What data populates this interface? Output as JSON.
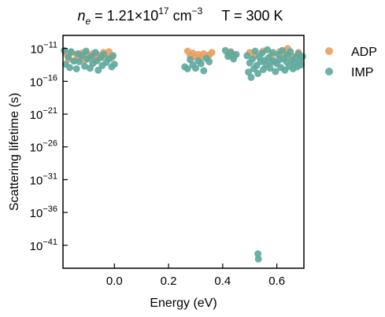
{
  "chart_data": {
    "type": "scatter",
    "title": {
      "density_symbol": "n",
      "density_subscript": "e",
      "density_value": "1.21×10",
      "density_exponent": "17",
      "density_unit": "cm",
      "density_unit_exponent": "−3",
      "temperature": "T = 300 K"
    },
    "xlabel": "Energy (eV)",
    "ylabel": "Scattering lifetime (s)",
    "xlim": [
      -0.19,
      0.7
    ],
    "ylim_log10": [
      -44.5,
      -9
    ],
    "y_scale": "log",
    "x_ticks": [
      {
        "value": 0.0,
        "label": "0.0"
      },
      {
        "value": 0.2,
        "label": "0.2"
      },
      {
        "value": 0.4,
        "label": "0.4"
      },
      {
        "value": 0.6,
        "label": "0.6"
      }
    ],
    "y_ticks": [
      {
        "value": -11,
        "base": "10",
        "exp": "−11"
      },
      {
        "value": -16,
        "base": "10",
        "exp": "−16"
      },
      {
        "value": -21,
        "base": "10",
        "exp": "−21"
      },
      {
        "value": -26,
        "base": "10",
        "exp": "−26"
      },
      {
        "value": -31,
        "base": "10",
        "exp": "−31"
      },
      {
        "value": -36,
        "base": "10",
        "exp": "−36"
      },
      {
        "value": -41,
        "base": "10",
        "exp": "−41"
      }
    ],
    "legend_position": "outside-right",
    "series": [
      {
        "name": "ADP",
        "color": "#e8a15f",
        "points": [
          [
            -0.18,
            -11.8
          ],
          [
            -0.17,
            -12.6
          ],
          [
            -0.16,
            -11.6
          ],
          [
            -0.15,
            -12.9
          ],
          [
            -0.14,
            -11.9
          ],
          [
            -0.13,
            -12.4
          ],
          [
            -0.12,
            -11.7
          ],
          [
            -0.11,
            -12.8
          ],
          [
            -0.1,
            -11.9
          ],
          [
            -0.09,
            -12.5
          ],
          [
            -0.08,
            -11.8
          ],
          [
            -0.07,
            -12.7
          ],
          [
            -0.06,
            -12.0
          ],
          [
            -0.05,
            -12.3
          ],
          [
            -0.04,
            -11.6
          ],
          [
            -0.03,
            -12.2
          ],
          [
            -0.02,
            -11.5
          ],
          [
            -0.01,
            -12.4
          ],
          [
            0.27,
            -11.4
          ],
          [
            0.28,
            -12.1
          ],
          [
            0.29,
            -11.7
          ],
          [
            0.3,
            -12.3
          ],
          [
            0.31,
            -11.9
          ],
          [
            0.32,
            -12.4
          ],
          [
            0.33,
            -11.8
          ],
          [
            0.35,
            -12.0
          ],
          [
            0.36,
            -11.6
          ],
          [
            0.42,
            -11.9
          ],
          [
            0.43,
            -11.5
          ],
          [
            0.44,
            -12.2
          ],
          [
            0.5,
            -11.6
          ],
          [
            0.52,
            -12.0
          ],
          [
            0.55,
            -11.4
          ],
          [
            0.58,
            -12.1
          ],
          [
            0.61,
            -11.5
          ],
          [
            0.63,
            -11.8
          ],
          [
            0.64,
            -11.0
          ],
          [
            0.66,
            -12.2
          ],
          [
            0.68,
            -11.6
          ],
          [
            0.69,
            -12.4
          ]
        ]
      },
      {
        "name": "IMP",
        "color": "#5fa99e",
        "points": [
          [
            -0.185,
            -11.3
          ],
          [
            -0.18,
            -13.4
          ],
          [
            -0.17,
            -12.3
          ],
          [
            -0.165,
            -13.9
          ],
          [
            -0.16,
            -11.5
          ],
          [
            -0.15,
            -12.9
          ],
          [
            -0.14,
            -14.1
          ],
          [
            -0.135,
            -11.8
          ],
          [
            -0.13,
            -13.0
          ],
          [
            -0.12,
            -12.1
          ],
          [
            -0.11,
            -13.7
          ],
          [
            -0.105,
            -11.4
          ],
          [
            -0.1,
            -12.6
          ],
          [
            -0.09,
            -14.0
          ],
          [
            -0.085,
            -12.2
          ],
          [
            -0.08,
            -13.3
          ],
          [
            -0.07,
            -11.6
          ],
          [
            -0.065,
            -12.9
          ],
          [
            -0.06,
            -14.3
          ],
          [
            -0.05,
            -12.4
          ],
          [
            -0.045,
            -13.6
          ],
          [
            -0.04,
            -11.9
          ],
          [
            -0.03,
            -13.1
          ],
          [
            -0.02,
            -12.6
          ],
          [
            -0.01,
            -13.8
          ],
          [
            -0.005,
            -12.1
          ],
          [
            0.0,
            -13.4
          ],
          [
            0.26,
            -13.8
          ],
          [
            0.27,
            -14.1
          ],
          [
            0.28,
            -12.7
          ],
          [
            0.29,
            -13.5
          ],
          [
            0.3,
            -14.0
          ],
          [
            0.31,
            -12.9
          ],
          [
            0.32,
            -13.3
          ],
          [
            0.33,
            -14.4
          ],
          [
            0.34,
            -12.5
          ],
          [
            0.35,
            -13.0
          ],
          [
            0.41,
            -11.3
          ],
          [
            0.42,
            -12.2
          ],
          [
            0.43,
            -11.6
          ],
          [
            0.44,
            -12.6
          ],
          [
            0.45,
            -11.9
          ],
          [
            0.49,
            -12.1
          ],
          [
            0.495,
            -14.6
          ],
          [
            0.5,
            -13.2
          ],
          [
            0.505,
            -15.4
          ],
          [
            0.51,
            -12.6
          ],
          [
            0.515,
            -14.1
          ],
          [
            0.52,
            -11.4
          ],
          [
            0.525,
            -13.6
          ],
          [
            0.53,
            -14.8
          ],
          [
            0.535,
            -12.3
          ],
          [
            0.54,
            -13.0
          ],
          [
            0.545,
            -11.7
          ],
          [
            0.55,
            -14.2
          ],
          [
            0.555,
            -12.8
          ],
          [
            0.56,
            -13.5
          ],
          [
            0.565,
            -11.2
          ],
          [
            0.57,
            -12.4
          ],
          [
            0.575,
            -14.0
          ],
          [
            0.58,
            -13.1
          ],
          [
            0.585,
            -11.6
          ],
          [
            0.59,
            -12.9
          ],
          [
            0.595,
            -14.5
          ],
          [
            0.6,
            -13.3
          ],
          [
            0.605,
            -11.9
          ],
          [
            0.61,
            -12.7
          ],
          [
            0.615,
            -13.9
          ],
          [
            0.62,
            -11.3
          ],
          [
            0.625,
            -12.5
          ],
          [
            0.63,
            -14.3
          ],
          [
            0.635,
            -13.0
          ],
          [
            0.64,
            -12.0
          ],
          [
            0.645,
            -13.7
          ],
          [
            0.65,
            -11.5
          ],
          [
            0.655,
            -12.8
          ],
          [
            0.66,
            -14.1
          ],
          [
            0.665,
            -13.2
          ],
          [
            0.67,
            -12.3
          ],
          [
            0.675,
            -13.8
          ],
          [
            0.68,
            -11.8
          ],
          [
            0.685,
            -12.9
          ],
          [
            0.69,
            -13.5
          ],
          [
            0.695,
            -12.2
          ],
          [
            0.53,
            -42.3
          ],
          [
            0.532,
            -43.1
          ]
        ]
      }
    ]
  }
}
